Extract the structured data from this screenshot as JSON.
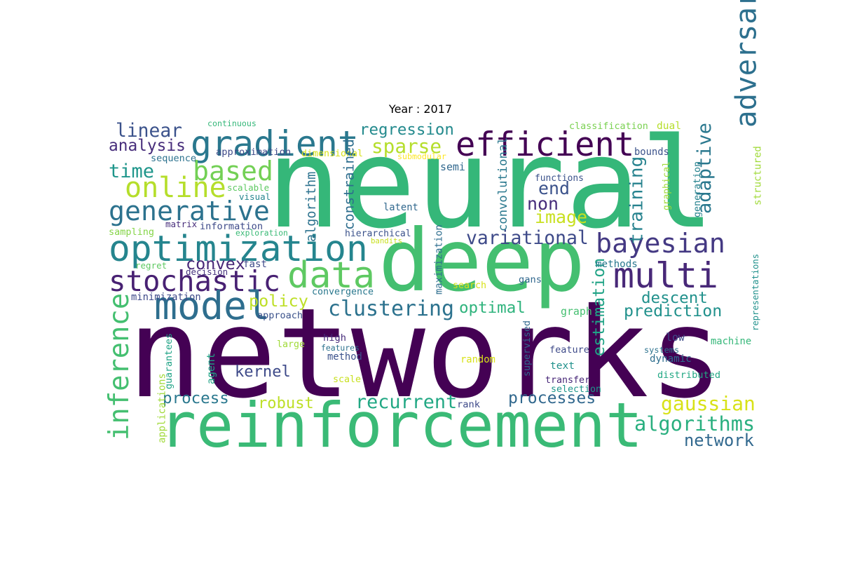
{
  "chart_data": {
    "type": "wordcloud",
    "title": "Year : 2017",
    "colormap": "viridis",
    "words": [
      {
        "text": "neural",
        "color": "#35b779"
      },
      {
        "text": "networks",
        "color": "#440154"
      },
      {
        "text": "deep",
        "color": "#44bf70"
      },
      {
        "text": "reinforcement",
        "color": "#3aba76"
      },
      {
        "text": "gradient",
        "color": "#2a788e"
      },
      {
        "text": "optimization",
        "color": "#25858e"
      },
      {
        "text": "efficient",
        "color": "#440154"
      },
      {
        "text": "stochastic",
        "color": "#482173"
      },
      {
        "text": "generative",
        "color": "#2c728e"
      },
      {
        "text": "multi",
        "color": "#482878"
      },
      {
        "text": "adversarial",
        "color": "#2d708e"
      },
      {
        "text": "data",
        "color": "#5ec962"
      },
      {
        "text": "model",
        "color": "#2e6e8e"
      },
      {
        "text": "inference",
        "color": "#44bf70"
      },
      {
        "text": "bayesian",
        "color": "#443983"
      },
      {
        "text": "based",
        "color": "#73d055"
      },
      {
        "text": "online",
        "color": "#b5de2b"
      },
      {
        "text": "clustering",
        "color": "#2c728e"
      },
      {
        "text": "variational",
        "color": "#3e4a89"
      },
      {
        "text": "linear",
        "color": "#3b528b"
      },
      {
        "text": "analysis",
        "color": "#472d7b"
      },
      {
        "text": "estimation",
        "color": "#20a386"
      },
      {
        "text": "adaptive",
        "color": "#2a788e"
      },
      {
        "text": "training",
        "color": "#26828e"
      },
      {
        "text": "regression",
        "color": "#238a8d"
      },
      {
        "text": "sparse",
        "color": "#b5de2b"
      },
      {
        "text": "time",
        "color": "#1f968b"
      },
      {
        "text": "descent",
        "color": "#21918c"
      },
      {
        "text": "prediction",
        "color": "#21918c"
      },
      {
        "text": "optimal",
        "color": "#2eb37c"
      },
      {
        "text": "policy",
        "color": "#bddf26"
      },
      {
        "text": "convex",
        "color": "#482878"
      },
      {
        "text": "kernel",
        "color": "#3e4a89"
      },
      {
        "text": "process",
        "color": "#2a788e"
      },
      {
        "text": "robust",
        "color": "#bddf26"
      },
      {
        "text": "recurrent",
        "color": "#22a884"
      },
      {
        "text": "processes",
        "color": "#31688e"
      },
      {
        "text": "gaussian",
        "color": "#d8e219"
      },
      {
        "text": "algorithms",
        "color": "#29af7f"
      },
      {
        "text": "network",
        "color": "#31688e"
      },
      {
        "text": "image",
        "color": "#c8e020"
      },
      {
        "text": "non",
        "color": "#472d7b"
      },
      {
        "text": "end",
        "color": "#3b528b"
      },
      {
        "text": "continuous",
        "color": "#35b779"
      },
      {
        "text": "classification",
        "color": "#7ad151"
      },
      {
        "text": "dual",
        "color": "#b5de2b"
      },
      {
        "text": "approximation",
        "color": "#3e4a89"
      },
      {
        "text": "dimensional",
        "color": "#d8e219"
      },
      {
        "text": "submodular",
        "color": "#fde725"
      },
      {
        "text": "bounds",
        "color": "#3b528b"
      },
      {
        "text": "sequence",
        "color": "#2c728e"
      },
      {
        "text": "semi",
        "color": "#31688e"
      },
      {
        "text": "scalable",
        "color": "#5ec962"
      },
      {
        "text": "visual",
        "color": "#25858e"
      },
      {
        "text": "functions",
        "color": "#3b528b"
      },
      {
        "text": "convolutional",
        "color": "#2a788e"
      },
      {
        "text": "constrained",
        "color": "#2e6e8e"
      },
      {
        "text": "algorithm",
        "color": "#2c728e"
      },
      {
        "text": "latent",
        "color": "#31688e"
      },
      {
        "text": "graphical",
        "color": "#a0da39"
      },
      {
        "text": "generation",
        "color": "#26828e"
      },
      {
        "text": "structured",
        "color": "#a0da39"
      },
      {
        "text": "sampling",
        "color": "#86d549"
      },
      {
        "text": "matrix",
        "color": "#472d7b"
      },
      {
        "text": "information",
        "color": "#3e4a89"
      },
      {
        "text": "exploration",
        "color": "#3aba76"
      },
      {
        "text": "hierarchical",
        "color": "#3b528b"
      },
      {
        "text": "bandits",
        "color": "#c8e020"
      },
      {
        "text": "maximization",
        "color": "#2e6e8e"
      },
      {
        "text": "representations",
        "color": "#21918c"
      },
      {
        "text": "regret",
        "color": "#5ec962"
      },
      {
        "text": "decision",
        "color": "#46337e"
      },
      {
        "text": "fast",
        "color": "#3e4a89"
      },
      {
        "text": "methods",
        "color": "#2a788e"
      },
      {
        "text": "search",
        "color": "#d8e219"
      },
      {
        "text": "gans",
        "color": "#31688e"
      },
      {
        "text": "minimization",
        "color": "#3e4a89"
      },
      {
        "text": "convergence",
        "color": "#2a788e"
      },
      {
        "text": "graph",
        "color": "#44bf70"
      },
      {
        "text": "approach",
        "color": "#3b528b"
      },
      {
        "text": "high",
        "color": "#472d7b"
      },
      {
        "text": "large",
        "color": "#a0da39"
      },
      {
        "text": "features",
        "color": "#2c728e"
      },
      {
        "text": "method",
        "color": "#3b528b"
      },
      {
        "text": "guarantees",
        "color": "#20a386"
      },
      {
        "text": "agent",
        "color": "#20a386"
      },
      {
        "text": "applications",
        "color": "#a0da39"
      },
      {
        "text": "random",
        "color": "#d8e219"
      },
      {
        "text": "scale",
        "color": "#c8e020"
      },
      {
        "text": "supervised",
        "color": "#31688e"
      },
      {
        "text": "feature",
        "color": "#3e4a89"
      },
      {
        "text": "text",
        "color": "#21918c"
      },
      {
        "text": "transfer",
        "color": "#482878"
      },
      {
        "text": "selection",
        "color": "#1f968b"
      },
      {
        "text": "rank",
        "color": "#3e4a89"
      },
      {
        "text": "low",
        "color": "#3e4a89"
      },
      {
        "text": "systems",
        "color": "#2c728e"
      },
      {
        "text": "dynamic",
        "color": "#2e6e8e"
      },
      {
        "text": "machine",
        "color": "#35b779"
      },
      {
        "text": "distributed",
        "color": "#22a884"
      }
    ]
  }
}
